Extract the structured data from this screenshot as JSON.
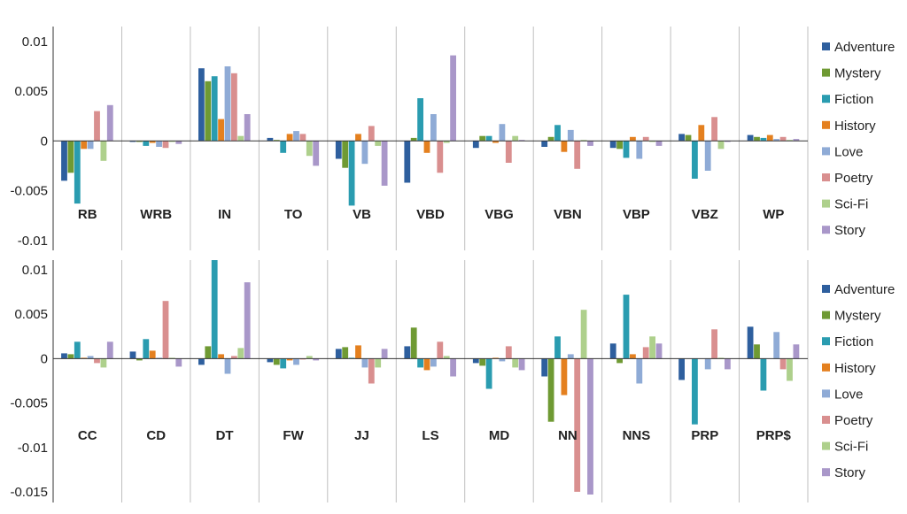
{
  "chart_data": [
    {
      "type": "bar",
      "panel": "top",
      "title": "",
      "xlabel": "",
      "ylabel": "",
      "ylim": [
        -0.011,
        0.0115
      ],
      "ytick_values": [
        0.01,
        0.005,
        0,
        -0.005,
        -0.01
      ],
      "ytick_labels": [
        "0.01",
        "0.005",
        "0",
        "-0.005",
        "-0.01"
      ],
      "categories": [
        "RB",
        "WRB",
        "IN",
        "TO",
        "VB",
        "VBD",
        "VBG",
        "VBN",
        "VBP",
        "VBZ",
        "WP"
      ],
      "legend_position": "right",
      "series": [
        {
          "name": "Adventure",
          "values": [
            -0.004,
            -0.0001,
            0.0073,
            0.0003,
            -0.0018,
            -0.0042,
            -0.0007,
            -0.0006,
            -0.0007,
            0.0007,
            0.0006
          ]
        },
        {
          "name": "Mystery",
          "values": [
            -0.0032,
            -0.0001,
            0.006,
            0.0001,
            -0.0027,
            0.0003,
            0.0005,
            0.0004,
            -0.0008,
            0.0006,
            0.0004
          ]
        },
        {
          "name": "Fiction",
          "values": [
            -0.0063,
            -0.0005,
            0.0065,
            -0.0012,
            -0.0065,
            0.0043,
            0.0005,
            0.0016,
            -0.0017,
            -0.0038,
            0.0003
          ]
        },
        {
          "name": "History",
          "values": [
            -0.0008,
            -0.0002,
            0.0022,
            0.0007,
            0.0007,
            -0.0012,
            -0.0002,
            -0.0011,
            0.0004,
            0.0016,
            0.0006
          ]
        },
        {
          "name": "Love",
          "values": [
            -0.0008,
            -0.0006,
            0.0075,
            0.001,
            -0.0023,
            0.0027,
            0.0017,
            0.0011,
            -0.0018,
            -0.003,
            0.0002
          ]
        },
        {
          "name": "Poetry",
          "values": [
            0.003,
            -0.0007,
            0.0068,
            0.0007,
            0.0015,
            -0.0032,
            -0.0022,
            -0.0028,
            0.0004,
            0.0024,
            0.0004
          ]
        },
        {
          "name": "Sci-Fi",
          "values": [
            -0.002,
            -0.0001,
            0.0005,
            -0.0015,
            -0.0005,
            -0.0002,
            0.0005,
            0.0001,
            -0.0001,
            -0.0008,
            0.0001
          ]
        },
        {
          "name": "Story",
          "values": [
            0.0036,
            -0.0003,
            0.0027,
            -0.0025,
            -0.0045,
            0.0086,
            0.0001,
            -0.0005,
            -0.0005,
            -0.0001,
            0.0002
          ]
        }
      ]
    },
    {
      "type": "bar",
      "panel": "bottom",
      "title": "",
      "xlabel": "",
      "ylabel": "",
      "ylim": [
        -0.0162,
        0.0111
      ],
      "ytick_values": [
        0.01,
        0.005,
        0,
        -0.005,
        -0.01,
        -0.015
      ],
      "ytick_labels": [
        "0.01",
        "0.005",
        "0",
        "-0.005",
        "-0.01",
        "-0.015"
      ],
      "categories": [
        "CC",
        "CD",
        "DT",
        "FW",
        "JJ",
        "LS",
        "MD",
        "NN",
        "NNS",
        "PRP",
        "PRP$"
      ],
      "legend_position": "right",
      "series": [
        {
          "name": "Adventure",
          "values": [
            0.0006,
            0.0008,
            -0.0007,
            -0.0004,
            0.0011,
            0.0014,
            -0.0005,
            -0.002,
            0.0017,
            -0.0024,
            0.0036
          ]
        },
        {
          "name": "Mystery",
          "values": [
            0.0005,
            -0.0002,
            0.0014,
            -0.0007,
            0.0013,
            0.0035,
            -0.0008,
            -0.0071,
            -0.0005,
            0.0,
            0.0016
          ]
        },
        {
          "name": "Fiction",
          "values": [
            0.0019,
            0.0022,
            0.0111,
            -0.0011,
            0.0001,
            -0.001,
            -0.0034,
            0.0025,
            0.0072,
            -0.0074,
            -0.0036
          ]
        },
        {
          "name": "History",
          "values": [
            0.0001,
            0.0009,
            0.0005,
            -0.0002,
            0.0015,
            -0.0013,
            0.0001,
            -0.0041,
            0.0005,
            0.0,
            0.0
          ]
        },
        {
          "name": "Love",
          "values": [
            0.0003,
            0.0001,
            -0.0017,
            -0.0007,
            -0.001,
            -0.0009,
            -0.0003,
            0.0005,
            -0.0028,
            -0.0012,
            0.003
          ]
        },
        {
          "name": "Poetry",
          "values": [
            -0.0005,
            0.0065,
            0.0003,
            -0.0001,
            -0.0028,
            0.0019,
            0.0014,
            -0.015,
            0.0013,
            0.0033,
            -0.0012
          ]
        },
        {
          "name": "Sci-Fi",
          "values": [
            -0.001,
            0.0001,
            0.0012,
            0.0003,
            -0.001,
            0.0003,
            -0.001,
            0.0055,
            0.0025,
            0.0001,
            -0.0025
          ]
        },
        {
          "name": "Story",
          "values": [
            0.0019,
            -0.0009,
            0.0086,
            -0.0002,
            0.0011,
            -0.002,
            -0.0013,
            -0.0153,
            0.0017,
            -0.0012,
            0.0016
          ]
        }
      ]
    }
  ],
  "colors": {
    "Adventure": "#2e5f9e",
    "Mystery": "#6f9a33",
    "Fiction": "#2a9cb0",
    "History": "#e4801f",
    "Love": "#8fabd6",
    "Poetry": "#d98f8f",
    "Sci-Fi": "#aed08c",
    "Story": "#a997c9",
    "axis": "#333333",
    "divider": "#bfbfbf"
  }
}
